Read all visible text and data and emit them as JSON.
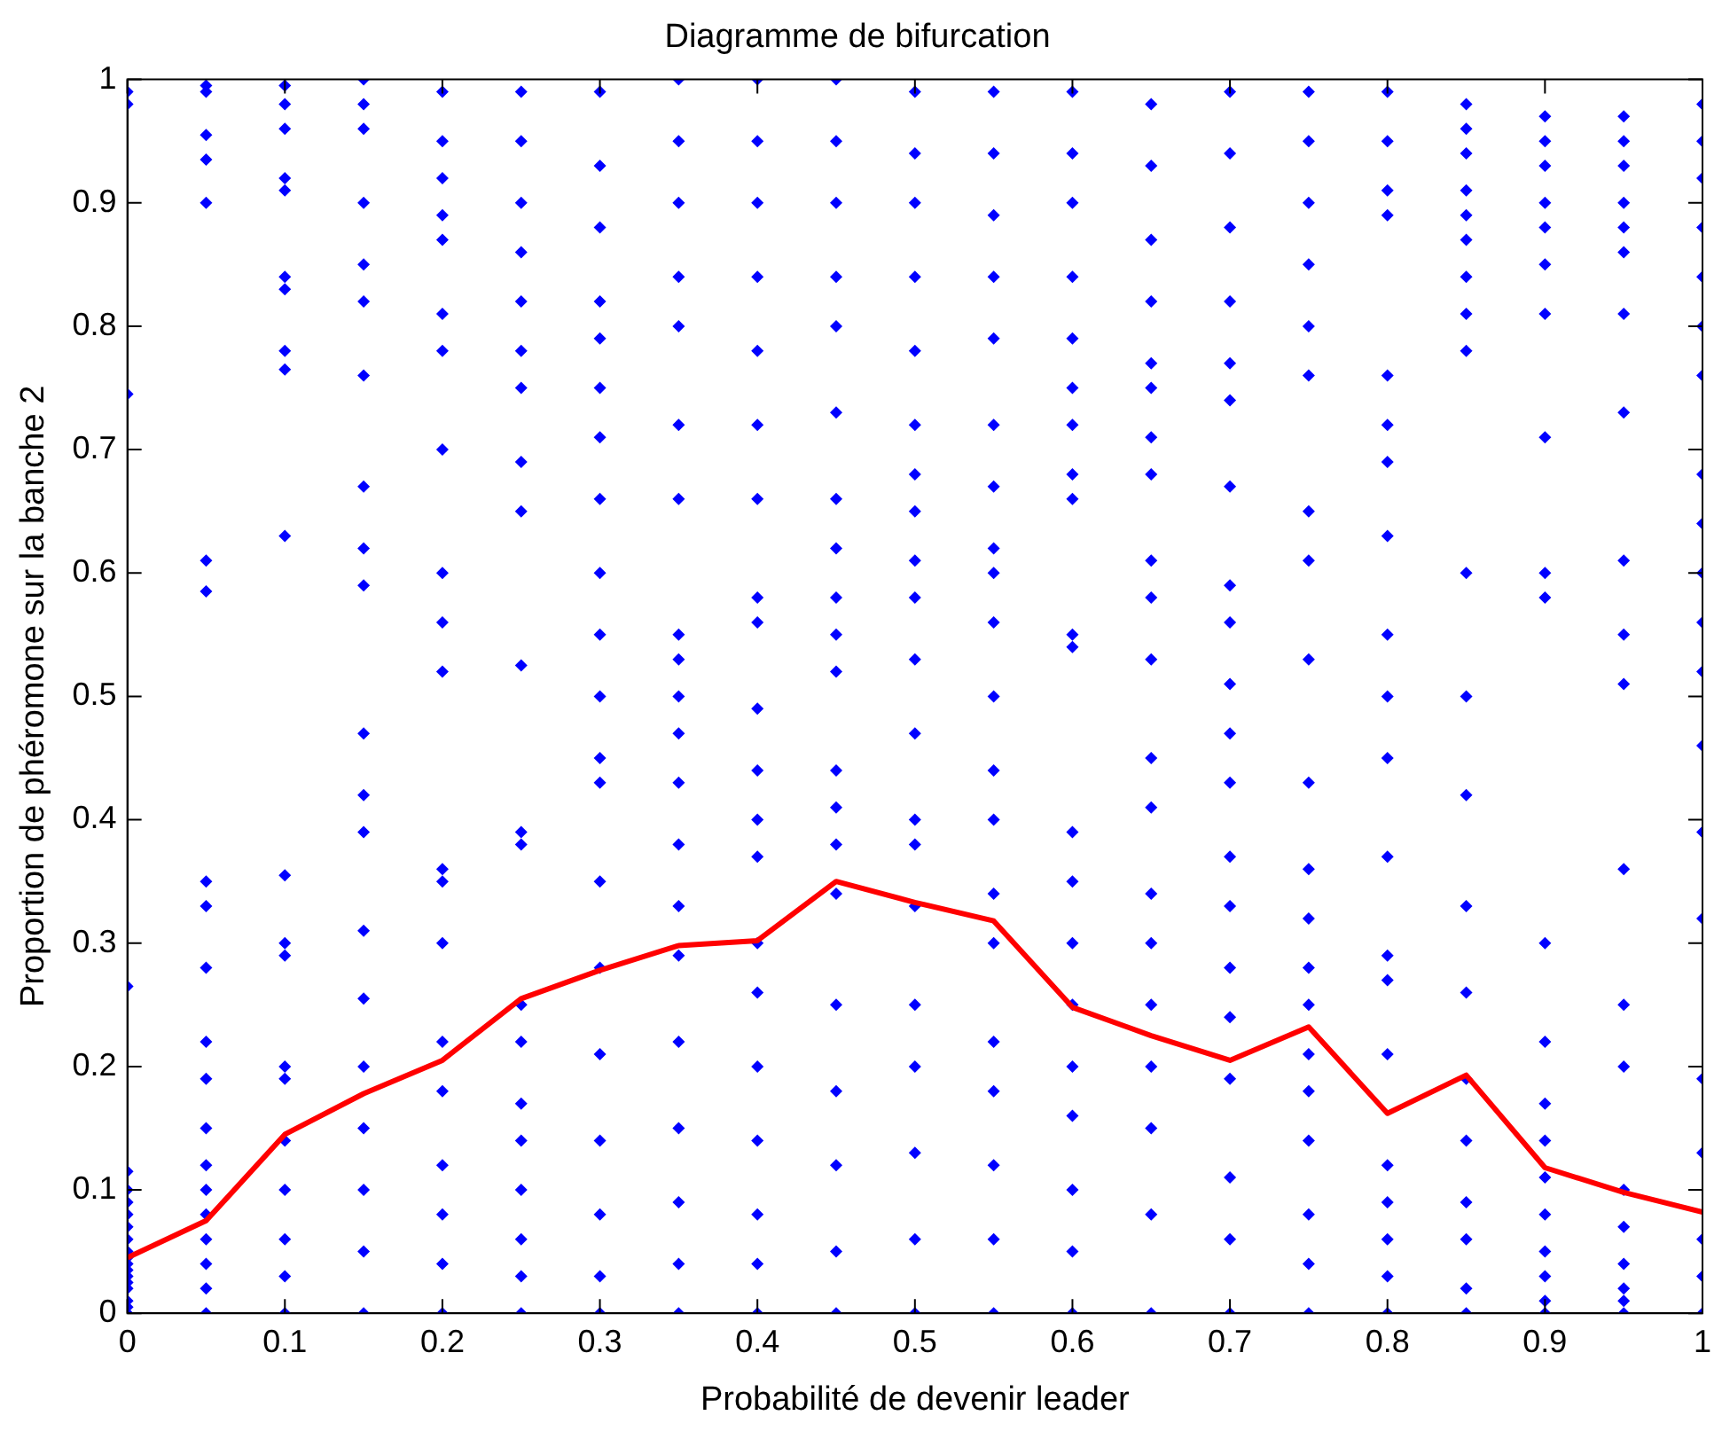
{
  "chart_data": {
    "type": "scatter",
    "title": "Diagramme de bifurcation",
    "xlabel": "Probabilité de devenir leader",
    "ylabel": "Proportion de phéromone sur la banche 2",
    "xlim": [
      0,
      1
    ],
    "ylim": [
      0,
      1
    ],
    "xticks": [
      0,
      {
        "value": 0.1,
        "label": "0.1"
      },
      {
        "value": 0.2,
        "label": "0.2"
      },
      {
        "value": 0.3,
        "label": "0.3"
      },
      {
        "value": 0.4,
        "label": "0.4"
      },
      {
        "value": 0.5,
        "label": "0.5"
      },
      {
        "value": 0.6,
        "label": "0.6"
      },
      {
        "value": 0.7,
        "label": "0.7"
      },
      {
        "value": 0.8,
        "label": "0.8"
      },
      {
        "value": 0.9,
        "label": "0.9"
      },
      1
    ],
    "yticks": [
      0,
      {
        "value": 0.1,
        "label": "0.1"
      },
      {
        "value": 0.2,
        "label": "0.2"
      },
      {
        "value": 0.3,
        "label": "0.3"
      },
      {
        "value": 0.4,
        "label": "0.4"
      },
      {
        "value": 0.5,
        "label": "0.5"
      },
      {
        "value": 0.6,
        "label": "0.6"
      },
      {
        "value": 0.7,
        "label": "0.7"
      },
      {
        "value": 0.8,
        "label": "0.8"
      },
      {
        "value": 0.9,
        "label": "0.9"
      },
      1
    ],
    "grid": false,
    "legend": false,
    "series": [
      {
        "type": "scatter",
        "color": "#0000ff",
        "marker": "diamond",
        "x": [
          0,
          0,
          0,
          0,
          0,
          0,
          0,
          0,
          0,
          0,
          0,
          0,
          0,
          0,
          0,
          0,
          0,
          0,
          0,
          0,
          0.05,
          0.05,
          0.05,
          0.05,
          0.05,
          0.05,
          0.05,
          0.05,
          0.05,
          0.05,
          0.05,
          0.05,
          0.05,
          0.05,
          0.05,
          0.05,
          0.05,
          0.05,
          0.05,
          0.05,
          0.1,
          0.1,
          0.1,
          0.1,
          0.1,
          0.1,
          0.1,
          0.1,
          0.1,
          0.1,
          0.1,
          0.1,
          0.1,
          0.1,
          0.1,
          0.1,
          0.1,
          0.1,
          0.1,
          0.1,
          0.15,
          0.15,
          0.15,
          0.15,
          0.15,
          0.15,
          0.15,
          0.15,
          0.15,
          0.15,
          0.15,
          0.15,
          0.15,
          0.15,
          0.15,
          0.15,
          0.15,
          0.15,
          0.15,
          0.15,
          0.2,
          0.2,
          0.2,
          0.2,
          0.2,
          0.2,
          0.2,
          0.2,
          0.2,
          0.2,
          0.2,
          0.2,
          0.2,
          0.2,
          0.2,
          0.2,
          0.2,
          0.2,
          0.2,
          0.2,
          0.25,
          0.25,
          0.25,
          0.25,
          0.25,
          0.25,
          0.25,
          0.25,
          0.25,
          0.25,
          0.25,
          0.25,
          0.25,
          0.25,
          0.25,
          0.25,
          0.25,
          0.25,
          0.25,
          0.25,
          0.3,
          0.3,
          0.3,
          0.3,
          0.3,
          0.3,
          0.3,
          0.3,
          0.3,
          0.3,
          0.3,
          0.3,
          0.3,
          0.3,
          0.3,
          0.3,
          0.3,
          0.3,
          0.3,
          0.3,
          0.35,
          0.35,
          0.35,
          0.35,
          0.35,
          0.35,
          0.35,
          0.35,
          0.35,
          0.35,
          0.35,
          0.35,
          0.35,
          0.35,
          0.35,
          0.35,
          0.35,
          0.35,
          0.35,
          0.35,
          0.4,
          0.4,
          0.4,
          0.4,
          0.4,
          0.4,
          0.4,
          0.4,
          0.4,
          0.4,
          0.4,
          0.4,
          0.4,
          0.4,
          0.4,
          0.4,
          0.4,
          0.4,
          0.4,
          0.4,
          0.45,
          0.45,
          0.45,
          0.45,
          0.45,
          0.45,
          0.45,
          0.45,
          0.45,
          0.45,
          0.45,
          0.45,
          0.45,
          0.45,
          0.45,
          0.45,
          0.45,
          0.45,
          0.45,
          0.45,
          0.5,
          0.5,
          0.5,
          0.5,
          0.5,
          0.5,
          0.5,
          0.5,
          0.5,
          0.5,
          0.5,
          0.5,
          0.5,
          0.5,
          0.5,
          0.5,
          0.5,
          0.5,
          0.5,
          0.5,
          0.55,
          0.55,
          0.55,
          0.55,
          0.55,
          0.55,
          0.55,
          0.55,
          0.55,
          0.55,
          0.55,
          0.55,
          0.55,
          0.55,
          0.55,
          0.55,
          0.55,
          0.55,
          0.55,
          0.55,
          0.6,
          0.6,
          0.6,
          0.6,
          0.6,
          0.6,
          0.6,
          0.6,
          0.6,
          0.6,
          0.6,
          0.6,
          0.6,
          0.6,
          0.6,
          0.6,
          0.6,
          0.6,
          0.6,
          0.6,
          0.65,
          0.65,
          0.65,
          0.65,
          0.65,
          0.65,
          0.65,
          0.65,
          0.65,
          0.65,
          0.65,
          0.65,
          0.65,
          0.65,
          0.65,
          0.65,
          0.65,
          0.65,
          0.65,
          0.65,
          0.7,
          0.7,
          0.7,
          0.7,
          0.7,
          0.7,
          0.7,
          0.7,
          0.7,
          0.7,
          0.7,
          0.7,
          0.7,
          0.7,
          0.7,
          0.7,
          0.7,
          0.7,
          0.7,
          0.7,
          0.75,
          0.75,
          0.75,
          0.75,
          0.75,
          0.75,
          0.75,
          0.75,
          0.75,
          0.75,
          0.75,
          0.75,
          0.75,
          0.75,
          0.75,
          0.75,
          0.75,
          0.75,
          0.75,
          0.75,
          0.8,
          0.8,
          0.8,
          0.8,
          0.8,
          0.8,
          0.8,
          0.8,
          0.8,
          0.8,
          0.8,
          0.8,
          0.8,
          0.8,
          0.8,
          0.8,
          0.8,
          0.8,
          0.8,
          0.8,
          0.85,
          0.85,
          0.85,
          0.85,
          0.85,
          0.85,
          0.85,
          0.85,
          0.85,
          0.85,
          0.85,
          0.85,
          0.85,
          0.85,
          0.85,
          0.85,
          0.85,
          0.85,
          0.85,
          0.85,
          0.9,
          0.9,
          0.9,
          0.9,
          0.9,
          0.9,
          0.9,
          0.9,
          0.9,
          0.9,
          0.9,
          0.9,
          0.9,
          0.9,
          0.9,
          0.9,
          0.9,
          0.9,
          0.9,
          0.9,
          0.95,
          0.95,
          0.95,
          0.95,
          0.95,
          0.95,
          0.95,
          0.95,
          0.95,
          0.95,
          0.95,
          0.95,
          0.95,
          0.95,
          0.95,
          0.95,
          0.95,
          0.95,
          0.95,
          0.95,
          1,
          1,
          1,
          1,
          1,
          1,
          1,
          1,
          1,
          1,
          1,
          1,
          1,
          1,
          1,
          1,
          1,
          1,
          1,
          1
        ],
        "values": [
          0.99,
          0.98,
          0.745,
          0.265,
          0.115,
          0.1,
          0.09,
          0.08,
          0.07,
          0.06,
          0.05,
          0.045,
          0.04,
          0.035,
          0.03,
          0.025,
          0.02,
          0.01,
          0.005,
          0,
          0.995,
          0.99,
          0.955,
          0.935,
          0.9,
          0.61,
          0.585,
          0.35,
          0.33,
          0.28,
          0.22,
          0.19,
          0.15,
          0.12,
          0.1,
          0.08,
          0.06,
          0.04,
          0.02,
          0,
          0.995,
          0.98,
          0.96,
          0.92,
          0.91,
          0.84,
          0.83,
          0.78,
          0.765,
          0.63,
          0.355,
          0.3,
          0.29,
          0.2,
          0.19,
          0.14,
          0.1,
          0.06,
          0.03,
          0,
          1,
          0.98,
          0.96,
          0.9,
          0.85,
          0.82,
          0.76,
          0.67,
          0.62,
          0.59,
          0.47,
          0.42,
          0.39,
          0.31,
          0.255,
          0.2,
          0.15,
          0.1,
          0.05,
          0,
          0.99,
          0.95,
          0.92,
          0.89,
          0.87,
          0.81,
          0.78,
          0.7,
          0.6,
          0.56,
          0.52,
          0.36,
          0.35,
          0.3,
          0.22,
          0.18,
          0.12,
          0.08,
          0.04,
          0,
          0.99,
          0.95,
          0.9,
          0.86,
          0.82,
          0.78,
          0.75,
          0.69,
          0.65,
          0.525,
          0.39,
          0.38,
          0.25,
          0.22,
          0.17,
          0.14,
          0.1,
          0.06,
          0.03,
          0,
          0.99,
          0.93,
          0.88,
          0.82,
          0.79,
          0.75,
          0.71,
          0.66,
          0.6,
          0.55,
          0.5,
          0.45,
          0.43,
          0.35,
          0.28,
          0.21,
          0.14,
          0.08,
          0.03,
          0,
          1,
          0.95,
          0.9,
          0.84,
          0.8,
          0.72,
          0.66,
          0.55,
          0.53,
          0.5,
          0.47,
          0.43,
          0.38,
          0.33,
          0.29,
          0.22,
          0.15,
          0.09,
          0.04,
          0,
          1,
          0.95,
          0.9,
          0.84,
          0.78,
          0.72,
          0.66,
          0.58,
          0.56,
          0.49,
          0.44,
          0.4,
          0.37,
          0.3,
          0.26,
          0.2,
          0.14,
          0.08,
          0.04,
          0,
          1,
          0.95,
          0.9,
          0.84,
          0.8,
          0.73,
          0.66,
          0.62,
          0.58,
          0.55,
          0.52,
          0.44,
          0.41,
          0.38,
          0.34,
          0.25,
          0.18,
          0.12,
          0.05,
          0,
          0.99,
          0.94,
          0.9,
          0.84,
          0.78,
          0.72,
          0.68,
          0.65,
          0.61,
          0.58,
          0.53,
          0.47,
          0.4,
          0.38,
          0.33,
          0.25,
          0.2,
          0.13,
          0.06,
          0,
          0.99,
          0.94,
          0.89,
          0.84,
          0.79,
          0.72,
          0.67,
          0.62,
          0.6,
          0.56,
          0.5,
          0.44,
          0.4,
          0.34,
          0.3,
          0.22,
          0.18,
          0.12,
          0.06,
          0,
          0.99,
          0.94,
          0.9,
          0.84,
          0.79,
          0.75,
          0.72,
          0.68,
          0.66,
          0.55,
          0.54,
          0.39,
          0.35,
          0.3,
          0.25,
          0.2,
          0.16,
          0.1,
          0.05,
          0,
          0.98,
          0.93,
          0.87,
          0.82,
          0.77,
          0.75,
          0.71,
          0.68,
          0.61,
          0.58,
          0.53,
          0.45,
          0.41,
          0.34,
          0.3,
          0.25,
          0.2,
          0.15,
          0.08,
          0,
          0.99,
          0.94,
          0.88,
          0.82,
          0.77,
          0.74,
          0.67,
          0.59,
          0.56,
          0.51,
          0.47,
          0.43,
          0.37,
          0.33,
          0.28,
          0.24,
          0.19,
          0.11,
          0.06,
          0,
          0.99,
          0.95,
          0.9,
          0.85,
          0.8,
          0.76,
          0.65,
          0.61,
          0.53,
          0.43,
          0.36,
          0.32,
          0.28,
          0.25,
          0.21,
          0.18,
          0.14,
          0.08,
          0.04,
          0,
          0.99,
          0.95,
          0.91,
          0.89,
          0.76,
          0.72,
          0.69,
          0.63,
          0.55,
          0.5,
          0.45,
          0.37,
          0.29,
          0.27,
          0.21,
          0.12,
          0.09,
          0.06,
          0.03,
          0,
          0.98,
          0.96,
          0.94,
          0.91,
          0.89,
          0.87,
          0.84,
          0.81,
          0.78,
          0.6,
          0.5,
          0.42,
          0.33,
          0.26,
          0.19,
          0.14,
          0.09,
          0.06,
          0.02,
          0,
          0.97,
          0.95,
          0.93,
          0.9,
          0.88,
          0.85,
          0.81,
          0.71,
          0.6,
          0.58,
          0.3,
          0.22,
          0.17,
          0.14,
          0.11,
          0.08,
          0.05,
          0.03,
          0.01,
          0,
          0.97,
          0.95,
          0.93,
          0.9,
          0.88,
          0.86,
          0.81,
          0.73,
          0.61,
          0.55,
          0.51,
          0.36,
          0.25,
          0.2,
          0.1,
          0.07,
          0.04,
          0.02,
          0.01,
          0,
          0.98,
          0.95,
          0.92,
          0.88,
          0.84,
          0.8,
          0.76,
          0.68,
          0.64,
          0.6,
          0.56,
          0.52,
          0.46,
          0.39,
          0.32,
          0.19,
          0.13,
          0.06,
          0.03,
          0
        ]
      },
      {
        "type": "line",
        "color": "#ff0000",
        "marker": "none",
        "x": [
          0,
          0.05,
          0.1,
          0.15,
          0.2,
          0.25,
          0.3,
          0.35,
          0.4,
          0.45,
          0.5,
          0.55,
          0.6,
          0.65,
          0.7,
          0.75,
          0.8,
          0.85,
          0.9,
          0.95,
          1
        ],
        "values": [
          0.045,
          0.075,
          0.145,
          0.178,
          0.205,
          0.255,
          0.278,
          0.298,
          0.302,
          0.35,
          0.333,
          0.318,
          0.248,
          0.225,
          0.205,
          0.232,
          0.162,
          0.193,
          0.118,
          0.098,
          0.082
        ]
      }
    ]
  }
}
